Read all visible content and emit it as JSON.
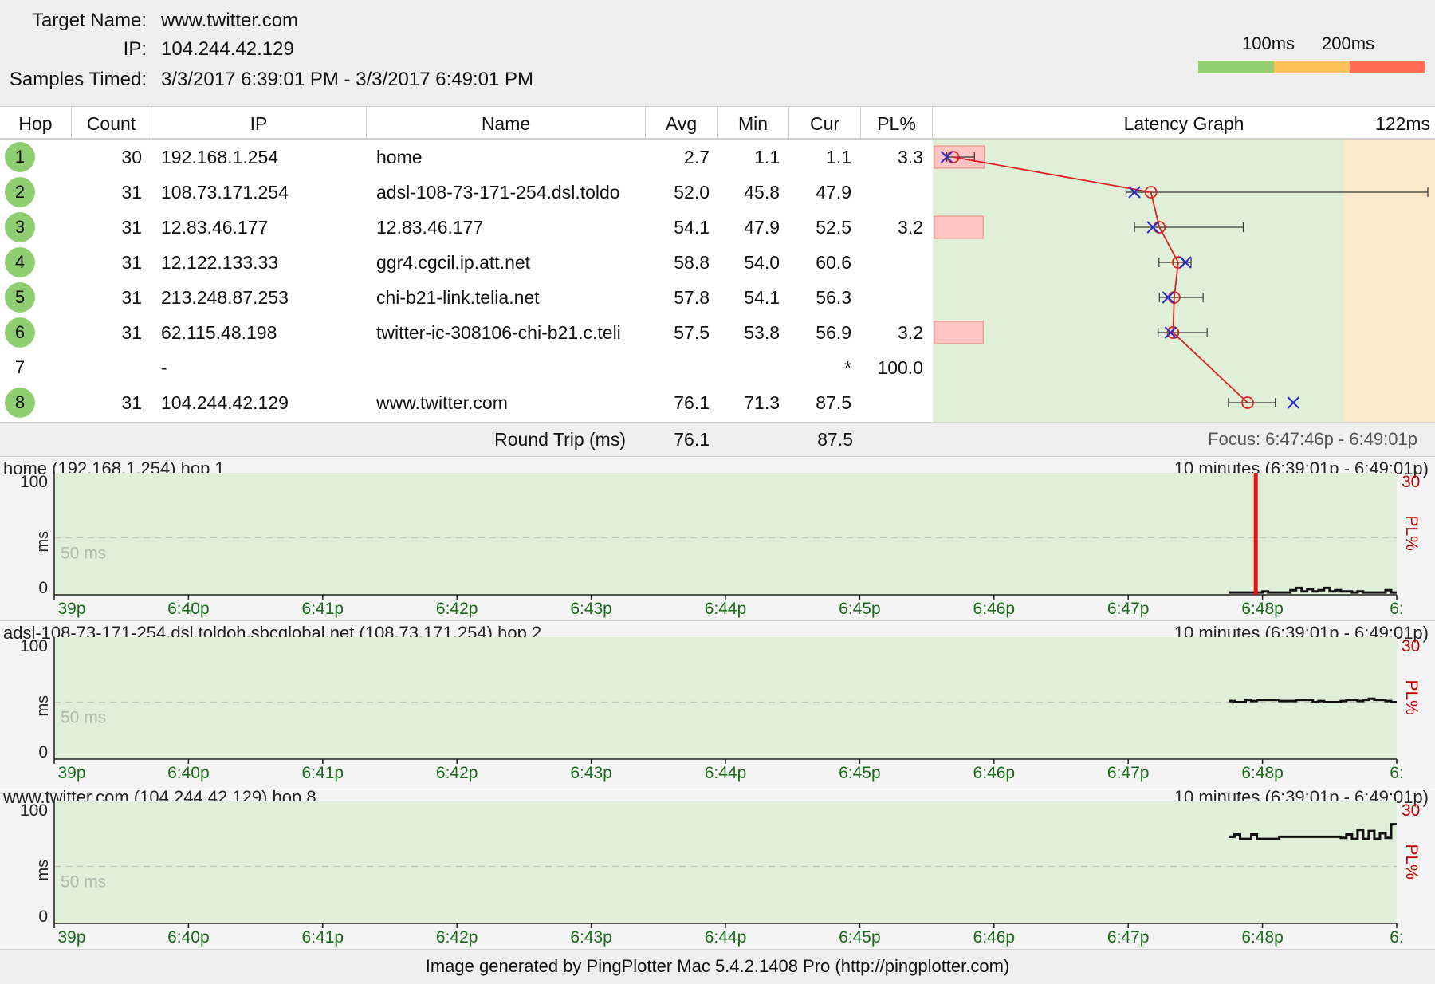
{
  "header": {
    "target_label": "Target Name:",
    "target_value": "www.twitter.com",
    "ip_label": "IP:",
    "ip_value": "104.244.42.129",
    "samples_label": "Samples Timed:",
    "samples_value": "3/3/2017 6:39:01 PM - 3/3/2017 6:49:01 PM",
    "legend": {
      "label_100": "100ms",
      "label_200": "200ms",
      "colors": [
        "#93cf6f",
        "#ffc25a",
        "#ff6b57"
      ]
    }
  },
  "table": {
    "columns": [
      "Hop",
      "Count",
      "IP",
      "Name",
      "Avg",
      "Min",
      "Cur",
      "PL%",
      "Latency Graph"
    ],
    "graph_max_label": "122ms",
    "rows": [
      {
        "hop": "1",
        "count": "30",
        "ip": "192.168.1.254",
        "name": "home",
        "avg": "2.7",
        "min": "1.1",
        "cur": "1.1",
        "pl": "3.3",
        "reply": true
      },
      {
        "hop": "2",
        "count": "31",
        "ip": "108.73.171.254",
        "name": "adsl-108-73-171-254.dsl.toldo",
        "avg": "52.0",
        "min": "45.8",
        "cur": "47.9",
        "pl": "",
        "reply": true
      },
      {
        "hop": "3",
        "count": "31",
        "ip": "12.83.46.177",
        "name": "12.83.46.177",
        "avg": "54.1",
        "min": "47.9",
        "cur": "52.5",
        "pl": "3.2",
        "reply": true
      },
      {
        "hop": "4",
        "count": "31",
        "ip": "12.122.133.33",
        "name": "ggr4.cgcil.ip.att.net",
        "avg": "58.8",
        "min": "54.0",
        "cur": "60.6",
        "pl": "",
        "reply": true
      },
      {
        "hop": "5",
        "count": "31",
        "ip": "213.248.87.253",
        "name": "chi-b21-link.telia.net",
        "avg": "57.8",
        "min": "54.1",
        "cur": "56.3",
        "pl": "",
        "reply": true
      },
      {
        "hop": "6",
        "count": "31",
        "ip": "62.115.48.198",
        "name": "twitter-ic-308106-chi-b21.c.teli",
        "avg": "57.5",
        "min": "53.8",
        "cur": "56.9",
        "pl": "3.2",
        "reply": true
      },
      {
        "hop": "7",
        "count": "",
        "ip": "-",
        "name": "",
        "avg": "",
        "min": "",
        "cur": "*",
        "pl": "100.0",
        "reply": false
      },
      {
        "hop": "8",
        "count": "31",
        "ip": "104.244.42.129",
        "name": "www.twitter.com",
        "avg": "76.1",
        "min": "71.3",
        "cur": "87.5",
        "pl": "",
        "reply": true
      }
    ],
    "round_trip_label": "Round Trip (ms)",
    "round_trip_avg": "76.1",
    "round_trip_cur": "87.5",
    "focus_text": "Focus: 6:47:46p - 6:49:01p"
  },
  "chart_data": [
    {
      "type": "line",
      "title": "Latency Graph",
      "x_range_ms": [
        0,
        122
      ],
      "threshold_zones_ms": [
        100
      ],
      "series": [
        {
          "name": "Avg",
          "values": [
            2.7,
            52.0,
            54.1,
            58.8,
            57.8,
            57.5,
            null,
            76.1
          ]
        },
        {
          "name": "Min",
          "values": [
            1.1,
            45.8,
            47.9,
            54.0,
            54.1,
            53.8,
            null,
            71.3
          ]
        },
        {
          "name": "Cur",
          "values": [
            1.1,
            47.9,
            52.5,
            60.6,
            56.3,
            56.9,
            null,
            87.5
          ]
        }
      ],
      "max_whisker_ms": [
        8,
        121,
        75,
        62,
        65,
        66,
        null,
        83
      ],
      "packet_loss_pct": [
        3.3,
        0,
        3.2,
        0,
        0,
        3.2,
        100.0,
        0
      ],
      "categories": [
        "1",
        "2",
        "3",
        "4",
        "5",
        "6",
        "7",
        "8"
      ]
    },
    {
      "type": "line",
      "title": "home (192.168.1.254) hop 1",
      "range_label": "10 minutes (6:39:01p - 6:49:01p)",
      "ylabel": "ms",
      "y2label": "PL%",
      "ylim": [
        0,
        100
      ],
      "y_ticks": [
        "100",
        "0"
      ],
      "dashed_line_label": "50 ms",
      "y2_max": "30",
      "x_ticks": [
        "39p",
        "6:40p",
        "6:41p",
        "6:42p",
        "6:43p",
        "6:44p",
        "6:45p",
        "6:46p",
        "6:47p",
        "6:48p",
        "6:"
      ],
      "x_minutes": [
        0,
        10
      ],
      "latency_start_min": 8.75,
      "latency_values": [
        2,
        2,
        2,
        2,
        2,
        2,
        3,
        2,
        2,
        2,
        2,
        4,
        6,
        3,
        5,
        3,
        4,
        6,
        3,
        4,
        3,
        3,
        2,
        3,
        2,
        2,
        2,
        2,
        4,
        2
      ],
      "loss_events": [
        {
          "minute": 8.95,
          "pct": 30
        }
      ]
    },
    {
      "type": "line",
      "title": "adsl-108-73-171-254.dsl.toldoh.sbcglobal.net (108.73.171.254) hop 2",
      "range_label": "10 minutes (6:39:01p - 6:49:01p)",
      "ylabel": "ms",
      "y2label": "PL%",
      "ylim": [
        0,
        100
      ],
      "y_ticks": [
        "100",
        "0"
      ],
      "dashed_line_label": "50 ms",
      "y2_max": "30",
      "x_ticks": [
        "39p",
        "6:40p",
        "6:41p",
        "6:42p",
        "6:43p",
        "6:44p",
        "6:45p",
        "6:46p",
        "6:47p",
        "6:48p",
        "6:"
      ],
      "x_minutes": [
        0,
        10
      ],
      "latency_start_min": 8.75,
      "latency_values": [
        51,
        50,
        50,
        52,
        51,
        52,
        52,
        52,
        52,
        51,
        51,
        51,
        52,
        52,
        52,
        50,
        51,
        50,
        50,
        50,
        51,
        52,
        52,
        51,
        52,
        53,
        52,
        52,
        51,
        50
      ],
      "loss_events": []
    },
    {
      "type": "line",
      "title": "www.twitter.com (104.244.42.129) hop 8",
      "range_label": "10 minutes (6:39:01p - 6:49:01p)",
      "ylabel": "ms",
      "y2label": "PL%",
      "ylim": [
        0,
        100
      ],
      "y_ticks": [
        "100",
        "0"
      ],
      "dashed_line_label": "50 ms",
      "y2_max": "30",
      "x_ticks": [
        "39p",
        "6:40p",
        "6:41p",
        "6:42p",
        "6:43p",
        "6:44p",
        "6:45p",
        "6:46p",
        "6:47p",
        "6:48p",
        "6:"
      ],
      "x_minutes": [
        0,
        10
      ],
      "latency_start_min": 8.75,
      "latency_values": [
        76,
        78,
        74,
        74,
        78,
        74,
        74,
        74,
        74,
        76,
        76,
        76,
        76,
        76,
        76,
        76,
        76,
        76,
        76,
        76,
        75,
        78,
        74,
        82,
        74,
        81,
        74,
        79,
        75,
        87
      ],
      "loss_events": []
    }
  ],
  "footer": {
    "text": "Image generated by PingPlotter Mac 5.4.2.1408 Pro (http://pingplotter.com)"
  }
}
